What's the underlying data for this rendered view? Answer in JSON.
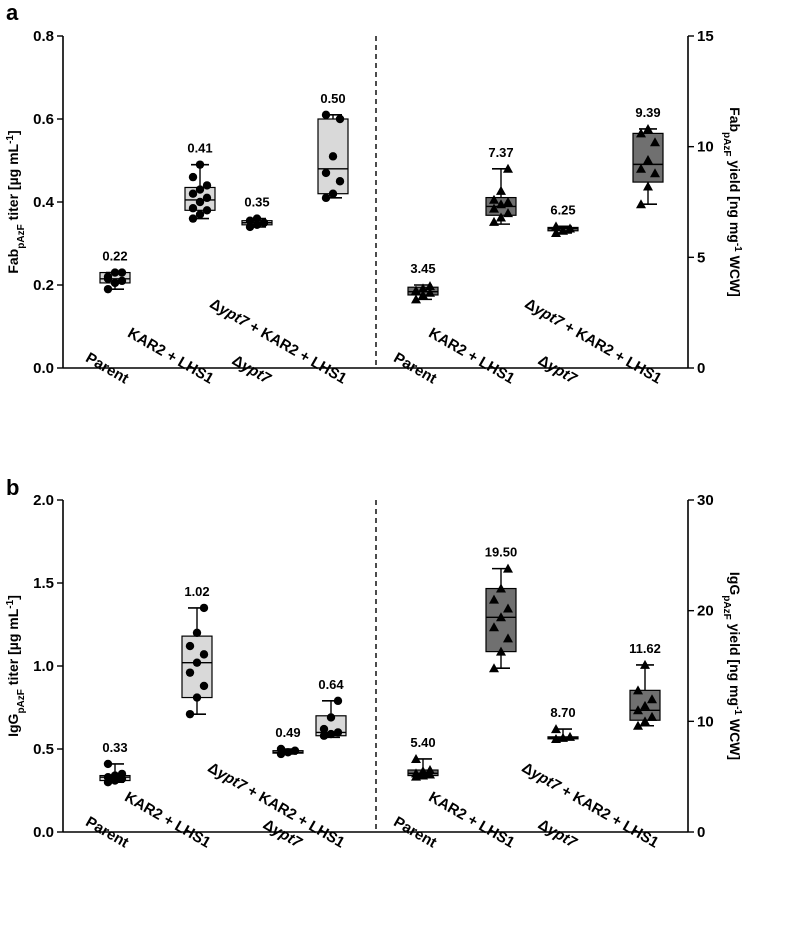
{
  "chart_data": [
    {
      "panel": "a",
      "type": "box",
      "categories": [
        "Parent",
        "KAR2 + LHS1",
        "Δypt7",
        "Δypt7 + KAR2 + LHS1"
      ],
      "left_axis": {
        "label": "Fab",
        "label_sub": "pAzF",
        "label_rest": " titer [µg mL",
        "label_sup": "-1",
        "label_end": "]",
        "ylim": [
          0,
          0.8
        ],
        "ticks": [
          "0.0",
          "0.2",
          "0.4",
          "0.6",
          "0.8"
        ]
      },
      "right_axis": {
        "label": "Fab",
        "label_sub": "pAzF",
        "label_rest": " yield [ng mg",
        "label_sup": "-1",
        "label_end": " WCW]",
        "ylim": [
          0,
          15
        ],
        "ticks": [
          "0",
          "5",
          "10",
          "15"
        ]
      },
      "series": [
        {
          "axis": "left",
          "marker": "circle",
          "fill": "#d9d9d9",
          "groups": [
            {
              "label": "0.22",
              "min": 0.19,
              "q1": 0.205,
              "median": 0.215,
              "q3": 0.23,
              "max": 0.23,
              "points": [
                0.19,
                0.205,
                0.21,
                0.215,
                0.23,
                0.23,
                0.22
              ]
            },
            {
              "label": "0.41",
              "min": 0.36,
              "q1": 0.38,
              "median": 0.405,
              "q3": 0.435,
              "max": 0.49,
              "points": [
                0.36,
                0.37,
                0.38,
                0.385,
                0.4,
                0.41,
                0.42,
                0.43,
                0.44,
                0.46,
                0.49
              ]
            },
            {
              "label": "0.35",
              "min": 0.34,
              "q1": 0.345,
              "median": 0.35,
              "q3": 0.355,
              "max": 0.36,
              "points": [
                0.34,
                0.345,
                0.35,
                0.355,
                0.36
              ]
            },
            {
              "label": "0.50",
              "min": 0.41,
              "q1": 0.42,
              "median": 0.48,
              "q3": 0.6,
              "max": 0.61,
              "points": [
                0.41,
                0.42,
                0.45,
                0.47,
                0.51,
                0.6,
                0.61
              ]
            }
          ]
        },
        {
          "axis": "right",
          "marker": "triangle",
          "fill": "#707070",
          "groups": [
            {
              "label": "3.45",
              "min": 3.1,
              "q1": 3.3,
              "median": 3.45,
              "q3": 3.65,
              "max": 3.75,
              "points": [
                3.1,
                3.3,
                3.4,
                3.5,
                3.6,
                3.7
              ]
            },
            {
              "label": "7.37",
              "min": 6.5,
              "q1": 6.9,
              "median": 7.3,
              "q3": 7.7,
              "max": 9.0,
              "points": [
                6.6,
                6.8,
                7.0,
                7.2,
                7.4,
                7.5,
                7.6,
                8.0,
                9.0
              ]
            },
            {
              "label": "6.25",
              "min": 6.1,
              "q1": 6.2,
              "median": 6.3,
              "q3": 6.35,
              "max": 6.4,
              "points": [
                6.1,
                6.2,
                6.3,
                6.4
              ]
            },
            {
              "label": "9.39",
              "min": 7.4,
              "q1": 8.4,
              "median": 9.2,
              "q3": 10.6,
              "max": 10.8,
              "points": [
                7.4,
                8.2,
                8.8,
                9.0,
                9.4,
                10.2,
                10.6,
                10.8
              ]
            }
          ]
        }
      ]
    },
    {
      "panel": "b",
      "type": "box",
      "categories": [
        "Parent",
        "KAR2 + LHS1",
        "Δypt7",
        "Δypt7 + KAR2 + LHS1"
      ],
      "left_axis": {
        "label": "IgG",
        "label_sub": "pAzF",
        "label_rest": " titer [µg mL",
        "label_sup": "-1",
        "label_end": "]",
        "ylim": [
          0,
          2.0
        ],
        "ticks": [
          "0.0",
          "0.5",
          "1.0",
          "1.5",
          "2.0"
        ]
      },
      "right_axis": {
        "label": "IgG",
        "label_sub": "pAzF",
        "label_rest": " yield [ng mg",
        "label_sup": "-1",
        "label_end": " WCW]",
        "ylim": [
          0,
          30
        ],
        "ticks": [
          "0",
          "10",
          "20",
          "30"
        ]
      },
      "series": [
        {
          "axis": "left",
          "marker": "circle",
          "fill": "#d9d9d9",
          "groups": [
            {
              "label": "0.33",
              "min": 0.3,
              "q1": 0.31,
              "median": 0.33,
              "q3": 0.34,
              "max": 0.41,
              "points": [
                0.3,
                0.31,
                0.32,
                0.33,
                0.34,
                0.35,
                0.41
              ]
            },
            {
              "label": "1.02",
              "min": 0.71,
              "q1": 0.81,
              "median": 1.02,
              "q3": 1.18,
              "max": 1.35,
              "points": [
                0.71,
                0.81,
                0.88,
                0.96,
                1.02,
                1.07,
                1.12,
                1.2,
                1.35
              ]
            },
            {
              "label": "0.49",
              "min": 0.47,
              "q1": 0.475,
              "median": 0.48,
              "q3": 0.49,
              "max": 0.5,
              "points": [
                0.47,
                0.48,
                0.49,
                0.5
              ]
            },
            {
              "label": "0.64",
              "min": 0.57,
              "q1": 0.58,
              "median": 0.6,
              "q3": 0.7,
              "max": 0.79,
              "points": [
                0.58,
                0.59,
                0.6,
                0.62,
                0.69,
                0.79
              ]
            }
          ]
        },
        {
          "axis": "right",
          "marker": "triangle",
          "fill": "#707070",
          "groups": [
            {
              "label": "5.40",
              "min": 5.0,
              "q1": 5.1,
              "median": 5.3,
              "q3": 5.6,
              "max": 6.6,
              "points": [
                5.0,
                5.1,
                5.2,
                5.3,
                5.5,
                5.6,
                6.6
              ]
            },
            {
              "label": "19.50",
              "min": 14.8,
              "q1": 16.3,
              "median": 19.4,
              "q3": 22.0,
              "max": 23.8,
              "points": [
                14.8,
                16.3,
                17.5,
                18.5,
                19.4,
                20.2,
                21.0,
                22.0,
                23.8
              ]
            },
            {
              "label": "8.70",
              "min": 8.4,
              "q1": 8.45,
              "median": 8.5,
              "q3": 8.6,
              "max": 9.3,
              "points": [
                8.4,
                8.5,
                8.6,
                9.3
              ]
            },
            {
              "label": "11.62",
              "min": 9.6,
              "q1": 10.1,
              "median": 11.0,
              "q3": 12.8,
              "max": 15.1,
              "points": [
                9.6,
                10.0,
                10.4,
                11.0,
                11.4,
                12.0,
                12.8,
                15.1
              ]
            }
          ]
        }
      ]
    }
  ]
}
